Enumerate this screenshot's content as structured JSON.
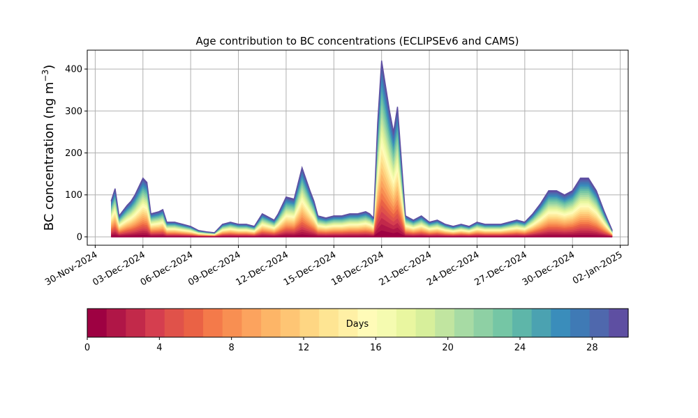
{
  "chart_data": [
    {
      "type": "area",
      "stacked": true,
      "title": "Age contribution to BC concentrations (ECLIPSEv6 and CAMS)",
      "ylabel": "BC concentration (ng m",
      "ylabel_sup": "−3",
      "ylabel_close": ")",
      "xlabel": "",
      "ylim": [
        -20,
        445
      ],
      "yticks": [
        0,
        100,
        200,
        300,
        400
      ],
      "x_start": "2024-11-29T12:00",
      "x_end": "2025-01-02T12:00",
      "xticks": [
        "30-Nov-2024",
        "03-Dec-2024",
        "06-Dec-2024",
        "09-Dec-2024",
        "12-Dec-2024",
        "15-Dec-2024",
        "18-Dec-2024",
        "21-Dec-2024",
        "24-Dec-2024",
        "27-Dec-2024",
        "30-Dec-2024",
        "02-Jan-2025"
      ],
      "grid": true,
      "total_concentration": {
        "x": [
          "2024-12-01T00:00",
          "2024-12-01T06:00",
          "2024-12-01T12:00",
          "2024-12-02T00:00",
          "2024-12-02T06:00",
          "2024-12-02T12:00",
          "2024-12-03T00:00",
          "2024-12-03T06:00",
          "2024-12-03T12:00",
          "2024-12-04T00:00",
          "2024-12-04T06:00",
          "2024-12-04T12:00",
          "2024-12-05T00:00",
          "2024-12-05T12:00",
          "2024-12-06T00:00",
          "2024-12-06T12:00",
          "2024-12-07T00:00",
          "2024-12-07T12:00",
          "2024-12-08T00:00",
          "2024-12-08T12:00",
          "2024-12-09T00:00",
          "2024-12-09T12:00",
          "2024-12-10T00:00",
          "2024-12-10T12:00",
          "2024-12-11T00:00",
          "2024-12-11T06:00",
          "2024-12-11T12:00",
          "2024-12-12T00:00",
          "2024-12-12T12:00",
          "2024-12-13T00:00",
          "2024-12-13T12:00",
          "2024-12-13T18:00",
          "2024-12-14T00:00",
          "2024-12-14T12:00",
          "2024-12-15T00:00",
          "2024-12-15T12:00",
          "2024-12-16T00:00",
          "2024-12-16T12:00",
          "2024-12-17T00:00",
          "2024-12-17T06:00",
          "2024-12-17T12:00",
          "2024-12-17T18:00",
          "2024-12-18T00:00",
          "2024-12-18T06:00",
          "2024-12-18T12:00",
          "2024-12-18T18:00",
          "2024-12-19T00:00",
          "2024-12-19T06:00",
          "2024-12-19T12:00",
          "2024-12-19T18:00",
          "2024-12-20T00:00",
          "2024-12-20T12:00",
          "2024-12-21T00:00",
          "2024-12-21T12:00",
          "2024-12-22T00:00",
          "2024-12-22T12:00",
          "2024-12-23T00:00",
          "2024-12-23T12:00",
          "2024-12-24T00:00",
          "2024-12-24T12:00",
          "2024-12-25T00:00",
          "2024-12-25T12:00",
          "2024-12-26T00:00",
          "2024-12-26T12:00",
          "2024-12-27T00:00",
          "2024-12-27T12:00",
          "2024-12-28T00:00",
          "2024-12-28T12:00",
          "2024-12-29T00:00",
          "2024-12-29T12:00",
          "2024-12-30T00:00",
          "2024-12-30T12:00",
          "2024-12-31T00:00",
          "2024-12-31T12:00",
          "2025-01-01T00:00",
          "2025-01-01T12:00"
        ],
        "y": [
          85,
          115,
          50,
          75,
          85,
          100,
          140,
          130,
          55,
          60,
          65,
          35,
          35,
          30,
          25,
          15,
          12,
          10,
          30,
          35,
          30,
          30,
          25,
          55,
          45,
          40,
          55,
          95,
          90,
          165,
          110,
          85,
          50,
          45,
          50,
          50,
          55,
          55,
          60,
          55,
          45,
          270,
          420,
          360,
          300,
          250,
          310,
          180,
          50,
          45,
          40,
          50,
          35,
          40,
          30,
          25,
          30,
          25,
          35,
          30,
          30,
          30,
          35,
          40,
          35,
          55,
          80,
          110,
          110,
          100,
          110,
          140,
          140,
          110,
          60,
          15
        ]
      },
      "colorbar": {
        "label": "Days",
        "min": 0,
        "max": 30,
        "ticks": [
          0,
          4,
          8,
          12,
          16,
          20,
          24,
          28
        ],
        "colormap": "Spectral",
        "colors": [
          "#9e0142",
          "#b01647",
          "#c2294a",
          "#d53e4f",
          "#e0524a",
          "#ea6245",
          "#f47a4a",
          "#f88f52",
          "#fca35e",
          "#fdb567",
          "#fec574",
          "#fed683",
          "#fee593",
          "#fff0a5",
          "#fffbb8",
          "#f5fbb0",
          "#e9f6a0",
          "#d7ef9b",
          "#c1e5a0",
          "#a7dba4",
          "#8ed0a4",
          "#75c6a5",
          "#5eb6a9",
          "#4ba2b1",
          "#3a8dbb",
          "#3f7ab5",
          "#4f68ad",
          "#5e4fa2"
        ]
      }
    }
  ]
}
